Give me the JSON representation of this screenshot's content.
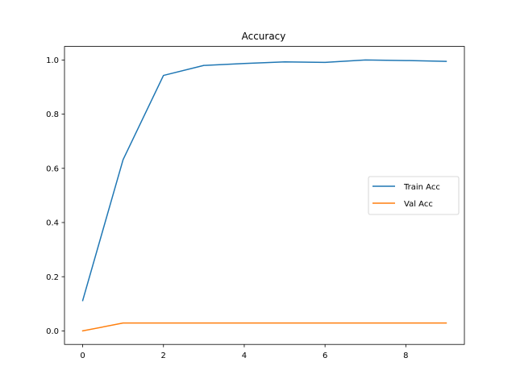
{
  "chart_data": {
    "type": "line",
    "title": "Accuracy",
    "xlabel": "",
    "ylabel": "",
    "x": [
      0,
      1,
      2,
      3,
      4,
      5,
      6,
      7,
      8,
      9
    ],
    "xlim": [
      -0.45,
      9.45
    ],
    "ylim": [
      -0.05,
      1.05
    ],
    "xticks": [
      0,
      2,
      4,
      6,
      8
    ],
    "xtick_labels": [
      "0",
      "2",
      "4",
      "6",
      "8"
    ],
    "yticks": [
      0.0,
      0.2,
      0.4,
      0.6,
      0.8,
      1.0
    ],
    "ytick_labels": [
      "0.0",
      "0.2",
      "0.4",
      "0.6",
      "0.8",
      "1.0"
    ],
    "grid": false,
    "legend_position": "center-right",
    "series": [
      {
        "name": "Train Acc",
        "color": "#1f77b4",
        "values": [
          0.112,
          0.632,
          0.943,
          0.98,
          0.987,
          0.993,
          0.991,
          1.0,
          0.998,
          0.995
        ]
      },
      {
        "name": "Val Acc",
        "color": "#ff7f0e",
        "values": [
          0.0,
          0.029,
          0.029,
          0.029,
          0.029,
          0.029,
          0.029,
          0.029,
          0.029,
          0.029
        ]
      }
    ]
  }
}
